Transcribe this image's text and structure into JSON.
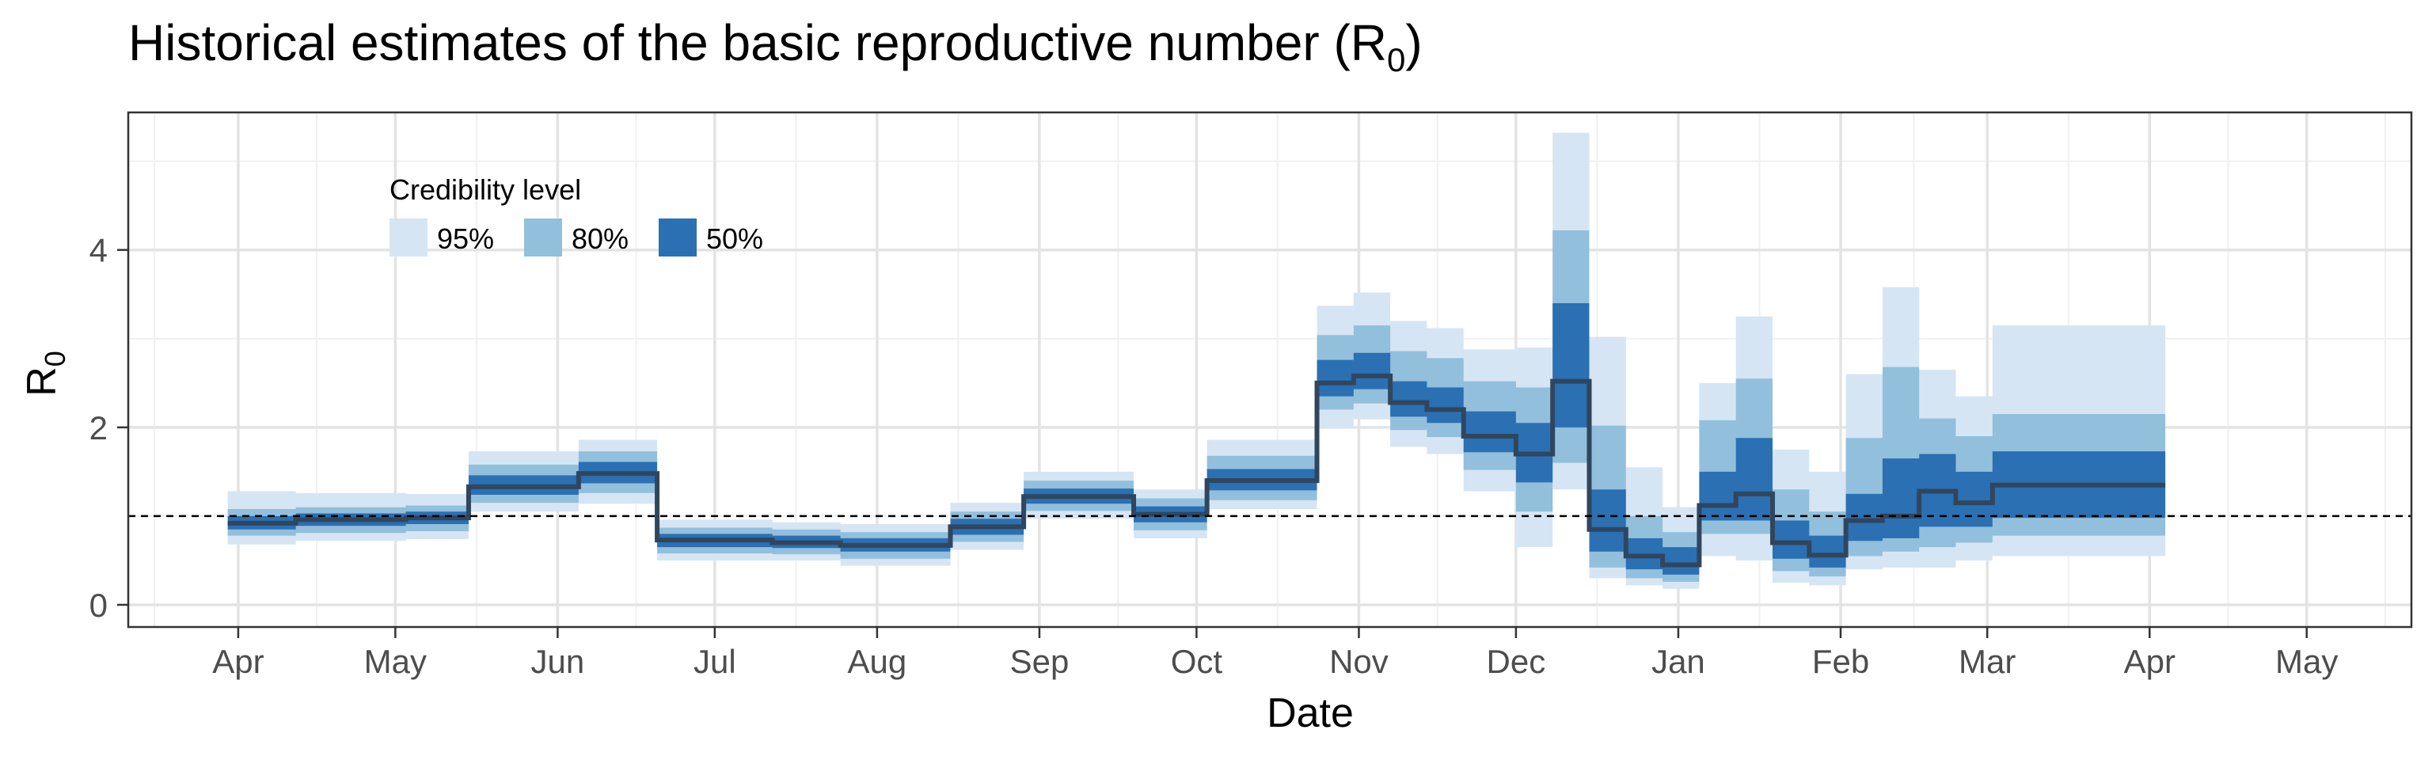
{
  "chart_data": {
    "type": "area",
    "title": "Historical estimates of the basic reproductive number (R",
    "title_subscript": "0",
    "title_suffix": ")",
    "xlabel": "Date",
    "ylabel": "R",
    "ylabel_subscript": "0",
    "x_axis": {
      "ticks": [
        {
          "label": "Apr",
          "date": "2020-04-01"
        },
        {
          "label": "May",
          "date": "2020-05-01"
        },
        {
          "label": "Jun",
          "date": "2020-06-01"
        },
        {
          "label": "Jul",
          "date": "2020-07-01"
        },
        {
          "label": "Aug",
          "date": "2020-08-01"
        },
        {
          "label": "Sep",
          "date": "2020-09-01"
        },
        {
          "label": "Oct",
          "date": "2020-10-01"
        },
        {
          "label": "Nov",
          "date": "2020-11-01"
        },
        {
          "label": "Dec",
          "date": "2020-12-01"
        },
        {
          "label": "Jan",
          "date": "2021-01-01"
        },
        {
          "label": "Feb",
          "date": "2021-02-01"
        },
        {
          "label": "Mar",
          "date": "2021-03-01"
        },
        {
          "label": "Apr",
          "date": "2021-04-01"
        },
        {
          "label": "May",
          "date": "2021-05-01"
        }
      ],
      "xlim": [
        "2020-03-11",
        "2021-05-21"
      ]
    },
    "y_axis": {
      "ticks": [
        0,
        2,
        4
      ],
      "ylim": [
        -0.25,
        5.55
      ]
    },
    "reference_line": {
      "y": 1,
      "style": "dashed"
    },
    "grid": true,
    "legend": {
      "title": "Credibility level",
      "position": "top-left",
      "items": [
        {
          "label": "95%",
          "color": "#d6e5f4"
        },
        {
          "label": "80%",
          "color": "#92bfdc"
        },
        {
          "label": "50%",
          "color": "#2b70b2"
        }
      ]
    },
    "colors": {
      "band95": "#d6e5f4",
      "band80": "#92bfdc",
      "band50": "#2b70b2",
      "median": "#30465e",
      "grid_major": "#e3e3e3",
      "grid_minor": "#f0f0f0",
      "axis": "#333333"
    },
    "series": [
      {
        "start": "2020-03-30",
        "end": "2020-04-12",
        "median": 0.92,
        "lo95": 0.68,
        "hi95": 1.28,
        "lo80": 0.78,
        "hi80": 1.08,
        "lo50": 0.85,
        "hi50": 1.0
      },
      {
        "start": "2020-04-12",
        "end": "2020-05-03",
        "median": 0.96,
        "lo95": 0.72,
        "hi95": 1.26,
        "lo80": 0.81,
        "hi80": 1.1,
        "lo50": 0.89,
        "hi50": 1.03
      },
      {
        "start": "2020-05-03",
        "end": "2020-05-15",
        "median": 0.98,
        "lo95": 0.74,
        "hi95": 1.25,
        "lo80": 0.83,
        "hi80": 1.12,
        "lo50": 0.91,
        "hi50": 1.05
      },
      {
        "start": "2020-05-15",
        "end": "2020-06-05",
        "median": 1.33,
        "lo95": 1.05,
        "hi95": 1.73,
        "lo80": 1.15,
        "hi80": 1.58,
        "lo50": 1.24,
        "hi50": 1.46
      },
      {
        "start": "2020-06-05",
        "end": "2020-06-20",
        "median": 1.48,
        "lo95": 1.14,
        "hi95": 1.86,
        "lo80": 1.26,
        "hi80": 1.73,
        "lo50": 1.37,
        "hi50": 1.61
      },
      {
        "start": "2020-06-20",
        "end": "2020-07-12",
        "median": 0.73,
        "lo95": 0.5,
        "hi95": 0.96,
        "lo80": 0.58,
        "hi80": 0.87,
        "lo50": 0.65,
        "hi50": 0.8
      },
      {
        "start": "2020-07-12",
        "end": "2020-07-25",
        "median": 0.7,
        "lo95": 0.5,
        "hi95": 0.93,
        "lo80": 0.57,
        "hi80": 0.85,
        "lo50": 0.64,
        "hi50": 0.78
      },
      {
        "start": "2020-07-25",
        "end": "2020-08-15",
        "median": 0.67,
        "lo95": 0.44,
        "hi95": 0.91,
        "lo80": 0.52,
        "hi80": 0.82,
        "lo50": 0.6,
        "hi50": 0.75
      },
      {
        "start": "2020-08-15",
        "end": "2020-08-29",
        "median": 0.88,
        "lo95": 0.62,
        "hi95": 1.15,
        "lo80": 0.71,
        "hi80": 1.05,
        "lo50": 0.79,
        "hi50": 0.97
      },
      {
        "start": "2020-08-29",
        "end": "2020-09-19",
        "median": 1.22,
        "lo95": 0.97,
        "hi95": 1.5,
        "lo80": 1.06,
        "hi80": 1.4,
        "lo50": 1.14,
        "hi50": 1.31
      },
      {
        "start": "2020-09-19",
        "end": "2020-10-03",
        "median": 1.02,
        "lo95": 0.75,
        "hi95": 1.3,
        "lo80": 0.84,
        "hi80": 1.2,
        "lo50": 0.93,
        "hi50": 1.11
      },
      {
        "start": "2020-10-03",
        "end": "2020-10-24",
        "median": 1.4,
        "lo95": 1.08,
        "hi95": 1.86,
        "lo80": 1.18,
        "hi80": 1.68,
        "lo50": 1.29,
        "hi50": 1.53
      },
      {
        "start": "2020-10-24",
        "end": "2020-10-31",
        "median": 2.5,
        "lo95": 2.0,
        "hi95": 3.37,
        "lo80": 2.2,
        "hi80": 3.04,
        "lo50": 2.35,
        "hi50": 2.76
      },
      {
        "start": "2020-10-31",
        "end": "2020-11-07",
        "median": 2.58,
        "lo95": 2.09,
        "hi95": 3.52,
        "lo80": 2.27,
        "hi80": 3.15,
        "lo50": 2.43,
        "hi50": 2.84
      },
      {
        "start": "2020-11-07",
        "end": "2020-11-14",
        "median": 2.28,
        "lo95": 1.78,
        "hi95": 3.2,
        "lo80": 1.97,
        "hi80": 2.86,
        "lo50": 2.12,
        "hi50": 2.52
      },
      {
        "start": "2020-11-14",
        "end": "2020-11-21",
        "median": 2.2,
        "lo95": 1.7,
        "hi95": 3.12,
        "lo80": 1.89,
        "hi80": 2.78,
        "lo50": 2.05,
        "hi50": 2.45
      },
      {
        "start": "2020-11-21",
        "end": "2020-12-01",
        "median": 1.9,
        "lo95": 1.28,
        "hi95": 2.88,
        "lo80": 1.52,
        "hi80": 2.52,
        "lo50": 1.72,
        "hi50": 2.18
      },
      {
        "start": "2020-12-01",
        "end": "2020-12-08",
        "median": 1.7,
        "lo95": 0.65,
        "hi95": 2.9,
        "lo80": 1.05,
        "hi80": 2.45,
        "lo50": 1.38,
        "hi50": 2.05
      },
      {
        "start": "2020-12-08",
        "end": "2020-12-15",
        "median": 2.52,
        "lo95": 1.3,
        "hi95": 5.32,
        "lo80": 1.6,
        "hi80": 4.22,
        "lo50": 2.0,
        "hi50": 3.4
      },
      {
        "start": "2020-12-15",
        "end": "2020-12-22",
        "median": 0.85,
        "lo95": 0.3,
        "hi95": 3.02,
        "lo80": 0.42,
        "hi80": 2.02,
        "lo50": 0.6,
        "hi50": 1.3
      },
      {
        "start": "2020-12-22",
        "end": "2020-12-29",
        "median": 0.55,
        "lo95": 0.22,
        "hi95": 1.55,
        "lo80": 0.3,
        "hi80": 1.0,
        "lo50": 0.4,
        "hi50": 0.75
      },
      {
        "start": "2020-12-29",
        "end": "2021-01-05",
        "median": 0.45,
        "lo95": 0.18,
        "hi95": 1.1,
        "lo80": 0.26,
        "hi80": 0.82,
        "lo50": 0.34,
        "hi50": 0.65
      },
      {
        "start": "2021-01-05",
        "end": "2021-01-12",
        "median": 1.12,
        "lo95": 0.55,
        "hi95": 2.5,
        "lo80": 0.8,
        "hi80": 2.08,
        "lo50": 0.95,
        "hi50": 1.5
      },
      {
        "start": "2021-01-12",
        "end": "2021-01-19",
        "median": 1.25,
        "lo95": 0.5,
        "hi95": 3.25,
        "lo80": 0.8,
        "hi80": 2.55,
        "lo50": 0.95,
        "hi50": 1.88
      },
      {
        "start": "2021-01-19",
        "end": "2021-01-26",
        "median": 0.7,
        "lo95": 0.25,
        "hi95": 1.75,
        "lo80": 0.38,
        "hi80": 1.3,
        "lo50": 0.52,
        "hi50": 0.95
      },
      {
        "start": "2021-01-26",
        "end": "2021-02-02",
        "median": 0.56,
        "lo95": 0.22,
        "hi95": 1.5,
        "lo80": 0.32,
        "hi80": 1.05,
        "lo50": 0.42,
        "hi50": 0.78
      },
      {
        "start": "2021-02-02",
        "end": "2021-02-09",
        "median": 0.95,
        "lo95": 0.4,
        "hi95": 2.6,
        "lo80": 0.55,
        "hi80": 1.88,
        "lo50": 0.72,
        "hi50": 1.25
      },
      {
        "start": "2021-02-09",
        "end": "2021-02-16",
        "median": 1.0,
        "lo95": 0.42,
        "hi95": 3.58,
        "lo80": 0.6,
        "hi80": 2.68,
        "lo50": 0.75,
        "hi50": 1.65
      },
      {
        "start": "2021-02-16",
        "end": "2021-02-23",
        "median": 1.28,
        "lo95": 0.42,
        "hi95": 2.65,
        "lo80": 0.65,
        "hi80": 2.1,
        "lo50": 0.88,
        "hi50": 1.7
      },
      {
        "start": "2021-02-23",
        "end": "2021-03-02",
        "median": 1.15,
        "lo95": 0.5,
        "hi95": 2.35,
        "lo80": 0.7,
        "hi80": 1.9,
        "lo50": 0.88,
        "hi50": 1.5
      },
      {
        "start": "2021-03-02",
        "end": "2021-04-04",
        "median": 1.35,
        "lo95": 0.55,
        "hi95": 3.15,
        "lo80": 0.78,
        "hi80": 2.15,
        "lo50": 0.98,
        "hi50": 1.73
      }
    ]
  }
}
